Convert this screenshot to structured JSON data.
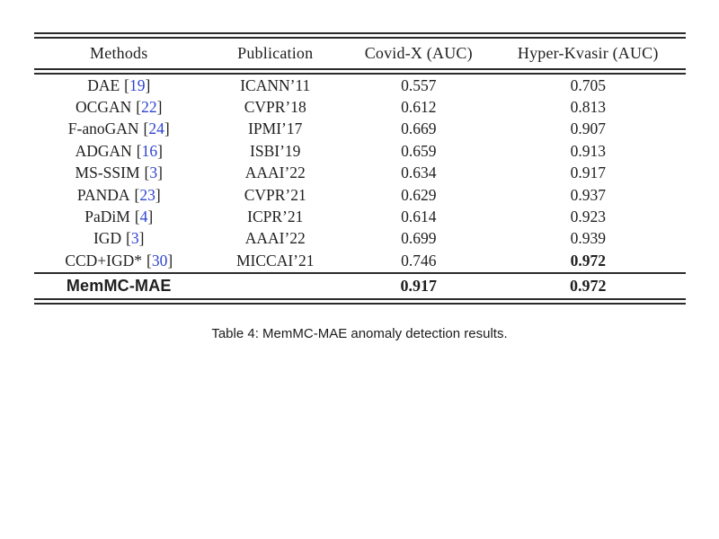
{
  "table": {
    "headers": [
      "Methods",
      "Publication",
      "Covid-X (AUC)",
      "Hyper-Kvasir (AUC)"
    ],
    "punct": {
      "open": "[",
      "close": "]"
    },
    "cite_color": "#2d44d0",
    "rule_color": "#2b2b2b",
    "rows": [
      {
        "method": "DAE",
        "cite": "19",
        "pub": "ICANN’11",
        "covid": "0.557",
        "hyper": "0.705"
      },
      {
        "method": "OCGAN",
        "cite": "22",
        "pub": "CVPR’18",
        "covid": "0.612",
        "hyper": "0.813"
      },
      {
        "method": "F-anoGAN",
        "cite": "24",
        "pub": "IPMI’17",
        "covid": "0.669",
        "hyper": "0.907"
      },
      {
        "method": "ADGAN",
        "cite": "16",
        "pub": "ISBI’19",
        "covid": "0.659",
        "hyper": "0.913"
      },
      {
        "method": "MS-SSIM",
        "cite": "3",
        "pub": "AAAI’22",
        "covid": "0.634",
        "hyper": "0.917"
      },
      {
        "method": "PANDA",
        "cite": "23",
        "pub": "CVPR’21",
        "covid": "0.629",
        "hyper": "0.937"
      },
      {
        "method": "PaDiM",
        "cite": "4",
        "pub": "ICPR’21",
        "covid": "0.614",
        "hyper": "0.923"
      },
      {
        "method": "IGD",
        "cite": "3",
        "pub": "AAAI’22",
        "covid": "0.699",
        "hyper": "0.939"
      },
      {
        "method": "CCD+IGD*",
        "cite": "30",
        "pub": "MICCAI’21",
        "covid": "0.746",
        "hyper": "0.972"
      }
    ],
    "final_row": {
      "method": "MemMC-MAE",
      "pub": "",
      "covid": "0.917",
      "hyper": "0.972"
    }
  },
  "caption": "Table 4: MemMC-MAE anomaly detection results."
}
